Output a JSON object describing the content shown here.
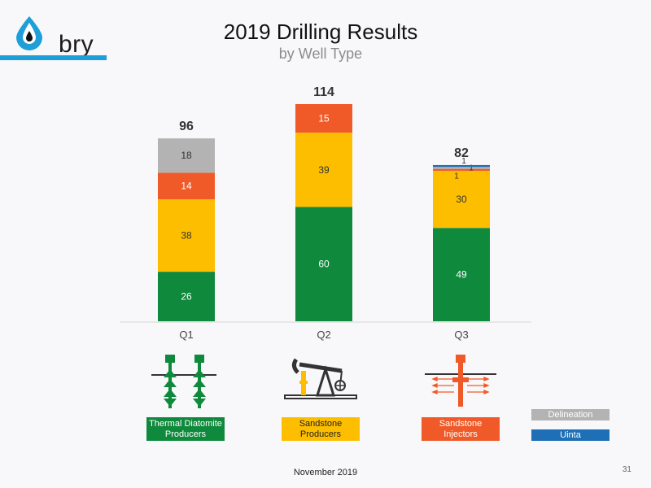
{
  "brand": {
    "name": "bry",
    "accent": "#1e9fd8"
  },
  "slide": {
    "title": "2019 Drilling Results",
    "subtitle": "by Well Type",
    "footer": "November 2019",
    "page_number": "31"
  },
  "legend": {
    "thermal": "Thermal Diatomite\nProducers",
    "sandstone_producers": "Sandstone\nProducers",
    "sandstone_injectors": "Sandstone\nInjectors",
    "delineation": "Delineation",
    "uinta": "Uinta"
  },
  "icons": [
    "diatomite-wells-icon",
    "pumpjack-icon",
    "injector-well-icon"
  ],
  "chart_data": {
    "type": "bar",
    "stacked": true,
    "categories": [
      "Q1",
      "Q2",
      "Q3"
    ],
    "totals": [
      96,
      114,
      82
    ],
    "series": [
      {
        "name": "Thermal Diatomite Producers",
        "values": [
          26,
          60,
          49
        ],
        "color": "#0f8a3c"
      },
      {
        "name": "Sandstone Producers",
        "values": [
          38,
          39,
          30
        ],
        "color": "#fdbe00"
      },
      {
        "name": "Sandstone Injectors",
        "values": [
          14,
          15,
          1
        ],
        "color": "#f05a28"
      },
      {
        "name": "Delineation",
        "values": [
          18,
          0,
          1
        ],
        "color": "#b3b3b3"
      },
      {
        "name": "Uinta",
        "values": [
          0,
          0,
          1
        ],
        "color": "#1e6fb5"
      }
    ],
    "ylim": [
      0,
      114
    ],
    "grid": false
  }
}
